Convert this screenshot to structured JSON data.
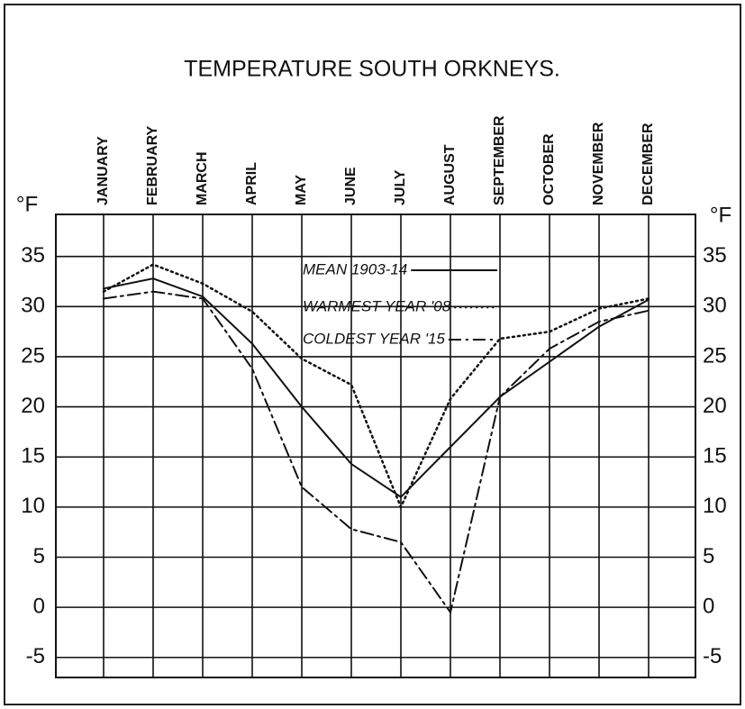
{
  "chart_data": {
    "type": "line",
    "title": "TEMPERATURE SOUTH ORKNEYS.",
    "y_label": "°F",
    "categories": [
      "JANUARY",
      "FEBRUARY",
      "MARCH",
      "APRIL",
      "MAY",
      "JUNE",
      "JULY",
      "AUGUST",
      "SEPTEMBER",
      "OCTOBER",
      "NOVEMBER",
      "DECEMBER"
    ],
    "series": [
      {
        "name": "MEAN 1903-14",
        "color": "#111111",
        "dash": "solid",
        "values": [
          31.8,
          32.8,
          31.0,
          26.3,
          20.0,
          14.3,
          11.0,
          16.0,
          21.0,
          24.5,
          28.0,
          30.7
        ]
      },
      {
        "name": "WARMEST YEAR '08",
        "color": "#111111",
        "dash": "dotted",
        "values": [
          31.5,
          34.2,
          32.3,
          29.5,
          24.8,
          22.2,
          10.0,
          20.8,
          26.8,
          27.5,
          29.8,
          30.8
        ]
      },
      {
        "name": "COLDEST YEAR '15",
        "color": "#111111",
        "dash": "dashdot",
        "values": [
          30.8,
          31.5,
          30.8,
          23.8,
          12.0,
          7.8,
          6.5,
          -0.5,
          21.0,
          25.8,
          28.5,
          29.6
        ]
      }
    ],
    "ylim": [
      -7,
      39.2
    ],
    "yticks": [
      -5,
      0,
      5,
      10,
      15,
      20,
      25,
      30,
      35
    ],
    "grid": true
  }
}
